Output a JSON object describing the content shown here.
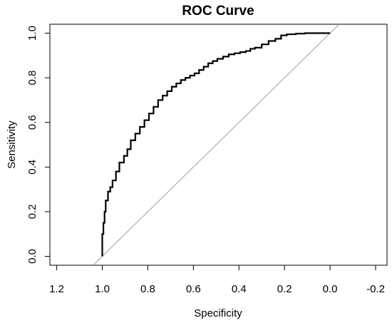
{
  "chart_data": {
    "type": "line",
    "title": "ROC Curve",
    "xlabel": "Specificity",
    "ylabel": "Sensitivity",
    "x_reversed": true,
    "xlim": [
      1.23,
      -0.25
    ],
    "ylim": [
      -0.04,
      1.04
    ],
    "x_ticks": [
      1.2,
      1.0,
      0.8,
      0.6,
      0.4,
      0.2,
      0.0,
      -0.2
    ],
    "x_tick_labels": [
      "1.2",
      "1.0",
      "0.8",
      "0.6",
      "0.4",
      "0.2",
      "0.0",
      "-0.2"
    ],
    "y_ticks": [
      0.0,
      0.2,
      0.4,
      0.6,
      0.8,
      1.0
    ],
    "y_tick_labels": [
      "0.0",
      "0.2",
      "0.4",
      "0.6",
      "0.8",
      "1.0"
    ],
    "grid": false,
    "reference_line": {
      "x": [
        1,
        0
      ],
      "y": [
        0,
        1
      ],
      "color": "#a0a0a0"
    },
    "series": [
      {
        "color": "#000000",
        "x": [
          1.0,
          1.0,
          0.995,
          0.99,
          0.985,
          0.975,
          0.965,
          0.955,
          0.94,
          0.925,
          0.905,
          0.89,
          0.875,
          0.855,
          0.835,
          0.815,
          0.795,
          0.775,
          0.755,
          0.735,
          0.715,
          0.695,
          0.675,
          0.655,
          0.635,
          0.615,
          0.595,
          0.575,
          0.555,
          0.535,
          0.515,
          0.495,
          0.47,
          0.445,
          0.42,
          0.395,
          0.37,
          0.35,
          0.33,
          0.3,
          0.27,
          0.24,
          0.215,
          0.19,
          0.15,
          0.11,
          0.07,
          0.03,
          0.0
        ],
        "y": [
          0.0,
          0.05,
          0.1,
          0.15,
          0.2,
          0.25,
          0.29,
          0.31,
          0.34,
          0.38,
          0.42,
          0.45,
          0.48,
          0.52,
          0.55,
          0.58,
          0.61,
          0.64,
          0.67,
          0.7,
          0.72,
          0.74,
          0.76,
          0.775,
          0.79,
          0.8,
          0.81,
          0.82,
          0.835,
          0.85,
          0.865,
          0.875,
          0.885,
          0.895,
          0.905,
          0.91,
          0.915,
          0.92,
          0.93,
          0.935,
          0.95,
          0.965,
          0.975,
          0.99,
          0.995,
          0.998,
          1.0,
          1.0,
          1.0
        ]
      }
    ]
  }
}
